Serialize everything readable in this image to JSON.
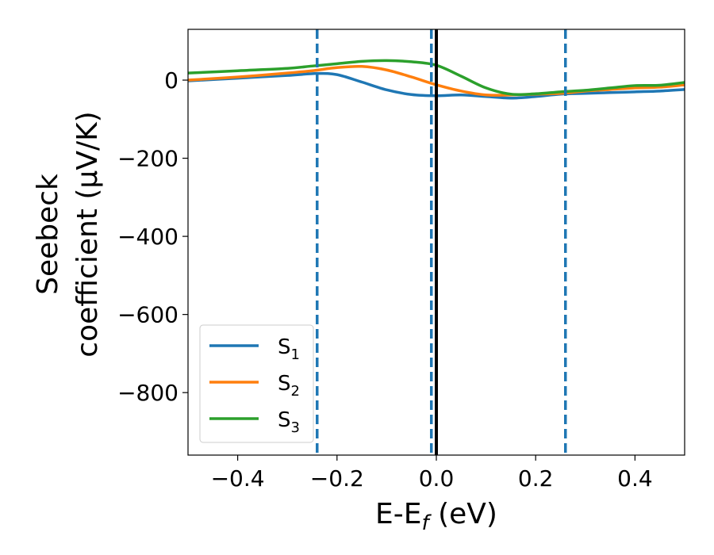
{
  "chart_data": {
    "type": "line",
    "xlabel_main": "E-E",
    "xlabel_sub": "f",
    "xlabel_unit": " (eV)",
    "ylabel_line1": "Seebeck",
    "ylabel_line2": "coefficient  (μV/K)",
    "xlim": [
      -0.5,
      0.5
    ],
    "ylim": [
      -960,
      130
    ],
    "xticks": [
      -0.4,
      -0.2,
      0.0,
      0.2,
      0.4
    ],
    "xtick_labels": [
      "−0.4",
      "−0.2",
      "0.0",
      "0.2",
      "0.4"
    ],
    "yticks": [
      0,
      -200,
      -400,
      -600,
      -800
    ],
    "ytick_labels": [
      "0",
      "−200",
      "−400",
      "−600",
      "−800"
    ],
    "legend_position": "lower-left",
    "series": [
      {
        "name": "S",
        "sub": "1",
        "color": "#1f77b4",
        "x": [
          -0.5,
          -0.4,
          -0.3,
          -0.24,
          -0.2,
          -0.15,
          -0.1,
          -0.05,
          0.0,
          0.05,
          0.1,
          0.15,
          0.2,
          0.25,
          0.3,
          0.35,
          0.4,
          0.45,
          0.5
        ],
        "y": [
          -2,
          5,
          12,
          17,
          14,
          -5,
          -25,
          -37,
          -40,
          -38,
          -42,
          -46,
          -42,
          -36,
          -34,
          -32,
          -30,
          -28,
          -24
        ]
      },
      {
        "name": "S",
        "sub": "2",
        "color": "#ff7f0e",
        "x": [
          -0.5,
          -0.4,
          -0.3,
          -0.25,
          -0.2,
          -0.15,
          -0.1,
          -0.05,
          0.0,
          0.05,
          0.1,
          0.15,
          0.2,
          0.25,
          0.3,
          0.35,
          0.4,
          0.45,
          0.5
        ],
        "y": [
          0,
          8,
          18,
          24,
          32,
          35,
          26,
          8,
          -12,
          -28,
          -38,
          -38,
          -36,
          -34,
          -28,
          -24,
          -20,
          -18,
          -12
        ]
      },
      {
        "name": "S",
        "sub": "3",
        "color": "#2ca02c",
        "x": [
          -0.5,
          -0.4,
          -0.3,
          -0.25,
          -0.2,
          -0.15,
          -0.1,
          -0.05,
          0.0,
          0.05,
          0.1,
          0.15,
          0.2,
          0.25,
          0.3,
          0.35,
          0.4,
          0.45,
          0.5
        ],
        "y": [
          18,
          24,
          30,
          36,
          42,
          48,
          50,
          47,
          38,
          10,
          -20,
          -36,
          -35,
          -30,
          -26,
          -20,
          -14,
          -13,
          -6
        ]
      }
    ],
    "vlines": [
      {
        "x": -0.24,
        "style": "dashed",
        "color": "#1f77b4"
      },
      {
        "x": -0.01,
        "style": "dashed",
        "color": "#1f77b4"
      },
      {
        "x": 0.26,
        "style": "dashed",
        "color": "#1f77b4"
      },
      {
        "x": 0.0,
        "style": "solid",
        "color": "#000000"
      }
    ]
  }
}
